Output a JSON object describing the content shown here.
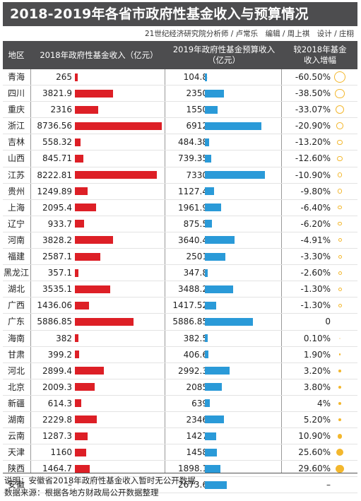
{
  "title": "2018-2019年各省市政府性基金收入与预算情况",
  "credits": "21世纪经济研究院分析师 / 卢常乐　编辑 / 周上祺　设计 / 庄栩",
  "headers": {
    "region": "地区",
    "revenue_2018": "2018年政府性基金收入（亿元）",
    "budget_2019_line1": "2019年政府性基金预算收入",
    "budget_2019_line2": "（亿元）",
    "growth_line1": "较2018年基金",
    "growth_line2": "收入增幅"
  },
  "notes": [
    "说明：安徽省2018年政府性基金收入暂时无公开数据",
    "数据来源：根据各地方财政局公开数据整理"
  ],
  "colors": {
    "header_bg": "#4d4d4f",
    "bar_2018": "#dd1f26",
    "bar_2019": "#2a9ad8",
    "circle": "#f3b72d"
  },
  "chart_data": {
    "type": "table",
    "columns": [
      "地区",
      "2018年政府性基金收入（亿元）",
      "2019年政府性基金预算收入（亿元）",
      "较2018年基金收入增幅"
    ],
    "rows": [
      {
        "region": "青海",
        "v2018": "265",
        "v2019": "104.8",
        "change": "-60.50%",
        "pct": -60.5
      },
      {
        "region": "四川",
        "v2018": "3821.9",
        "v2019": "2350",
        "change": "-38.50%",
        "pct": -38.5
      },
      {
        "region": "重庆",
        "v2018": "2316",
        "v2019": "1550",
        "change": "-33.07%",
        "pct": -33.07
      },
      {
        "region": "浙江",
        "v2018": "8736.56",
        "v2019": "6912",
        "change": "-20.90%",
        "pct": -20.9
      },
      {
        "region": "吉林",
        "v2018": "558.32",
        "v2019": "484.38",
        "change": "-13.20%",
        "pct": -13.2
      },
      {
        "region": "山西",
        "v2018": "845.71",
        "v2019": "739.35",
        "change": "-12.60%",
        "pct": -12.6
      },
      {
        "region": "江苏",
        "v2018": "8222.81",
        "v2019": "7330",
        "change": "-10.90%",
        "pct": -10.9
      },
      {
        "region": "贵州",
        "v2018": "1249.89",
        "v2019": "1127.4",
        "change": "-9.80%",
        "pct": -9.8
      },
      {
        "region": "上海",
        "v2018": "2095.4",
        "v2019": "1961.9",
        "change": "-6.40%",
        "pct": -6.4
      },
      {
        "region": "辽宁",
        "v2018": "933.7",
        "v2019": "875.5",
        "change": "-6.20%",
        "pct": -6.2
      },
      {
        "region": "河南",
        "v2018": "3828.2",
        "v2019": "3640.4",
        "change": "-4.91%",
        "pct": -4.91
      },
      {
        "region": "福建",
        "v2018": "2587.1",
        "v2019": "2501",
        "change": "-3.30%",
        "pct": -3.3
      },
      {
        "region": "黑龙江",
        "v2018": "357.1",
        "v2019": "347.8",
        "change": "-2.60%",
        "pct": -2.6
      },
      {
        "region": "湖北",
        "v2018": "3535.1",
        "v2019": "3488.2",
        "change": "-1.30%",
        "pct": -1.3
      },
      {
        "region": "广西",
        "v2018": "1436.06",
        "v2019": "1417.52",
        "change": "-1.30%",
        "pct": -1.3
      },
      {
        "region": "广东",
        "v2018": "5886.85",
        "v2019": "5886.85",
        "change": "0",
        "pct": 0
      },
      {
        "region": "海南",
        "v2018": "382",
        "v2019": "382.5",
        "change": "0.10%",
        "pct": 0.1
      },
      {
        "region": "甘肃",
        "v2018": "399.2",
        "v2019": "406.6",
        "change": "1.90%",
        "pct": 1.9
      },
      {
        "region": "河北",
        "v2018": "2899.4",
        "v2019": "2992.3",
        "change": "3.20%",
        "pct": 3.2
      },
      {
        "region": "北京",
        "v2018": "2009.3",
        "v2019": "2085",
        "change": "3.80%",
        "pct": 3.8
      },
      {
        "region": "新疆",
        "v2018": "614.3",
        "v2019": "639",
        "change": "4%",
        "pct": 4
      },
      {
        "region": "湖南",
        "v2018": "2229.8",
        "v2019": "2346",
        "change": "5.20%",
        "pct": 5.2
      },
      {
        "region": "云南",
        "v2018": "1287.3",
        "v2019": "1427",
        "change": "10.90%",
        "pct": 10.9
      },
      {
        "region": "天津",
        "v2018": "1160",
        "v2019": "1458",
        "change": "25.60%",
        "pct": 25.6
      },
      {
        "region": "陕西",
        "v2018": "1464.7",
        "v2019": "1898.1",
        "change": "29.60%",
        "pct": 29.6
      },
      {
        "region": "安徽",
        "v2018": "–",
        "v2019": "2673.6",
        "change": "–",
        "pct": null
      }
    ]
  }
}
